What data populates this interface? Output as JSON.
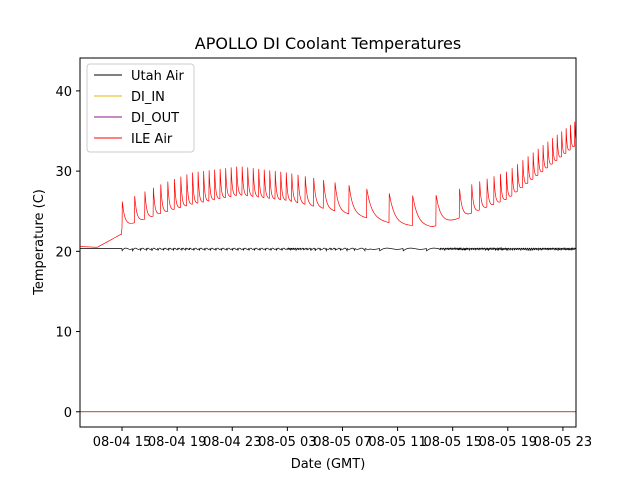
{
  "chart_data": {
    "type": "line",
    "title": "APOLLO DI Coolant Temperatures",
    "xlabel": "Date (GMT)",
    "ylabel": "Temperature (C)",
    "x_unit": "hours since 08-04 00:00 GMT",
    "xlim": [
      11.95,
      47.95
    ],
    "ylim": [
      -1.9,
      44.1
    ],
    "grid": false,
    "legend_placement": "top-left",
    "yticks": [
      0,
      10,
      20,
      30,
      40
    ],
    "ytick_labels": [
      "0",
      "10",
      "20",
      "30",
      "40"
    ],
    "xticks": [
      15,
      19,
      23,
      27,
      31,
      35,
      39,
      43,
      47
    ],
    "xtick_labels": [
      "08-04 15",
      "08-04 19",
      "08-04 23",
      "08-05 03",
      "08-05 07",
      "08-05 11",
      "08-05 15",
      "08-05 19",
      "08-05 23"
    ],
    "series": [
      {
        "name": "Utah Air",
        "color": "#000000",
        "description": "Flat near 20.3 C with small periodic dips/oscillations of about ±0.3 C",
        "base": 20.35,
        "amplitude": 0.3
      },
      {
        "name": "DI_IN",
        "color": "#e6b400",
        "description": "Constant at 0 C (hidden beneath DI_OUT)",
        "value": 0
      },
      {
        "name": "DI_OUT",
        "color": "#8b1a8b",
        "description": "Constant at 0 C",
        "value": 0
      },
      {
        "name": "ILE Air",
        "color": "#ff0000",
        "description": "Sawtooth cycling; baseline rises from ~20.6 C to ~22 C by 15:00, then cycles with peaks/troughs following envelopes below",
        "ramp": {
          "x": [
            11.95,
            13.2,
            14.9
          ],
          "y": [
            20.6,
            20.5,
            22.1
          ]
        },
        "trough_envelope": {
          "x": [
            15.0,
            18.0,
            20.0,
            23.5,
            27.0,
            31.0,
            35.0,
            37.5,
            39.0,
            43.0,
            47.95
          ],
          "y": [
            23.0,
            24.8,
            25.8,
            27.0,
            26.3,
            24.8,
            23.3,
            23.0,
            23.8,
            26.5,
            33.2
          ]
        },
        "peak_envelope": {
          "x": [
            15.0,
            18.0,
            20.0,
            23.5,
            27.0,
            31.0,
            35.0,
            37.5,
            39.0,
            43.0,
            47.95
          ],
          "y": [
            26.2,
            28.5,
            29.8,
            30.6,
            29.8,
            28.4,
            27.0,
            26.9,
            27.5,
            30.0,
            36.3
          ]
        },
        "cycle_period_hours": {
          "x": [
            15.0,
            17.0,
            20.0,
            27.0,
            30.0,
            33.0,
            38.0,
            40.0,
            43.0,
            47.95
          ],
          "y": [
            0.9,
            0.55,
            0.4,
            0.4,
            0.9,
            1.7,
            1.7,
            0.6,
            0.4,
            0.3
          ]
        }
      }
    ]
  }
}
